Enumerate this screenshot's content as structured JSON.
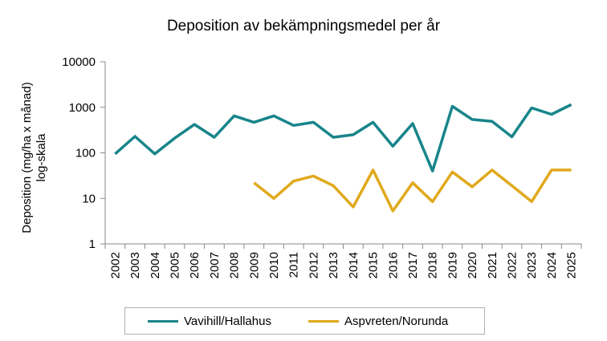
{
  "chart_data": {
    "type": "line",
    "title": "Deposition av bekämpningsmedel  per år",
    "ylabel": [
      "Deposition (mg/ha x månad)",
      "log-skala"
    ],
    "xlabel": "",
    "yscale": "log",
    "ylim": [
      1,
      10000
    ],
    "yticks": [
      "1",
      "10",
      "100",
      "1000",
      "10000"
    ],
    "grid": false,
    "legend_position": "bottom",
    "categories": [
      "2002",
      "2003",
      "2004",
      "2005",
      "2006",
      "2007",
      "2008",
      "2009",
      "2010",
      "2011",
      "2012",
      "2013",
      "2014",
      "2015",
      "2016",
      "2017",
      "2018",
      "2019",
      "2020",
      "2021",
      "2022",
      "2023",
      "2024",
      "2025"
    ],
    "series": [
      {
        "name": "Vavihill/Hallahus",
        "color": "#17858a",
        "values": [
          95,
          230,
          95,
          210,
          420,
          220,
          650,
          470,
          650,
          400,
          470,
          220,
          250,
          470,
          140,
          440,
          40,
          1050,
          540,
          490,
          225,
          970,
          700,
          1150
        ]
      },
      {
        "name": "Aspvreten/Norunda",
        "color": "#e0a91c",
        "values": [
          null,
          null,
          null,
          null,
          null,
          null,
          null,
          22,
          10,
          24,
          31,
          19,
          6.5,
          42,
          5.3,
          22,
          8.5,
          38,
          18,
          42,
          19,
          8.5,
          42,
          42
        ]
      }
    ]
  }
}
